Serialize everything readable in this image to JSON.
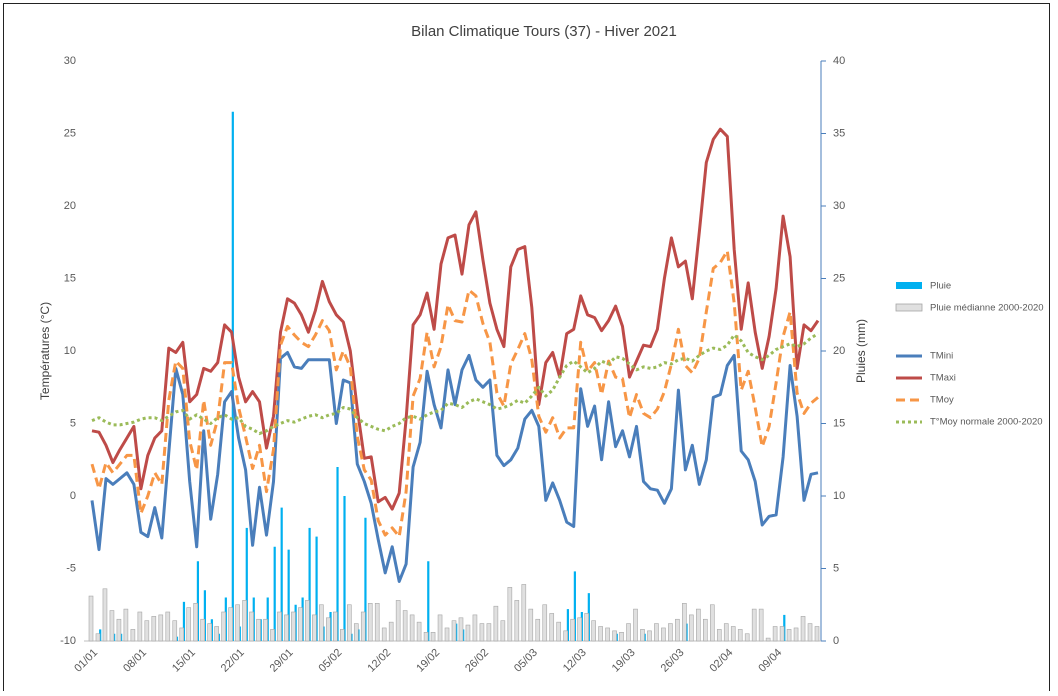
{
  "chart_data": {
    "type": "combo",
    "title": "Bilan Climatique Tours (37) - Hiver 2021",
    "y_label": "Températures (°C)",
    "y2_label": "Pluies (mm)",
    "legend": "right",
    "ylim": [
      -10,
      30
    ],
    "yticks": [
      -10,
      -5,
      0,
      5,
      10,
      15,
      20,
      25,
      30
    ],
    "y2lim": [
      0,
      40
    ],
    "y2ticks": [
      0,
      5,
      10,
      15,
      20,
      25,
      30,
      35,
      40
    ],
    "categories": [
      "01/01",
      null,
      null,
      null,
      null,
      null,
      null,
      "08/01",
      null,
      null,
      null,
      null,
      null,
      null,
      "15/01",
      null,
      null,
      null,
      null,
      null,
      null,
      "22/01",
      null,
      null,
      null,
      null,
      null,
      null,
      "29/01",
      null,
      null,
      null,
      null,
      null,
      null,
      "05/02",
      null,
      null,
      null,
      null,
      null,
      null,
      "12/02",
      null,
      null,
      null,
      null,
      null,
      null,
      "19/02",
      null,
      null,
      null,
      null,
      null,
      null,
      "26/02",
      null,
      null,
      null,
      null,
      null,
      null,
      "05/03",
      null,
      null,
      null,
      null,
      null,
      null,
      "12/03",
      null,
      null,
      null,
      null,
      null,
      null,
      "19/03",
      null,
      null,
      null,
      null,
      null,
      null,
      "26/03",
      null,
      null,
      null,
      null,
      null,
      null,
      "02/04",
      null,
      null,
      null,
      null,
      null,
      null,
      "09/04",
      null,
      null,
      null,
      null,
      null,
      null
    ],
    "series": [
      {
        "name": "Pluie",
        "kind": "bar",
        "axis": "y2",
        "color": "#00b0f0",
        "values": [
          0,
          0.8,
          0,
          0.5,
          0.5,
          0,
          0,
          0,
          0,
          0,
          0,
          0,
          0.3,
          2.7,
          0,
          5.5,
          3.5,
          1.5,
          0.5,
          3,
          36.5,
          1,
          7.8,
          3,
          1.5,
          3,
          6.5,
          9.2,
          6.3,
          2.5,
          3,
          7.8,
          7.2,
          1,
          2,
          12,
          10,
          0.5,
          0.8,
          8.5,
          0,
          0,
          0,
          0,
          0,
          0,
          0,
          0,
          5.5,
          0,
          0,
          0,
          1.2,
          0.8,
          0,
          0,
          0,
          0,
          0,
          0,
          0,
          0,
          0,
          0,
          0,
          0,
          0,
          0,
          2.2,
          4.8,
          2,
          3.3,
          0,
          0,
          0,
          0.5,
          0,
          0,
          0,
          0.5,
          0,
          0,
          0,
          0,
          0,
          1.2,
          0,
          0,
          0,
          0,
          0,
          0,
          0,
          0,
          0,
          0,
          0,
          0,
          0,
          1.8,
          0,
          0,
          0,
          0,
          0
        ]
      },
      {
        "name": "Pluie médianne 2000-2020",
        "kind": "bar",
        "axis": "y2",
        "color": "#e0e0e0",
        "values": [
          3.1,
          0.5,
          3.6,
          2.1,
          1.5,
          2.2,
          0.8,
          2.0,
          1.4,
          1.7,
          1.8,
          2.0,
          1.4,
          0.9,
          2.3,
          2.6,
          1.5,
          1.2,
          1.0,
          2.0,
          2.3,
          2.5,
          2.8,
          2.0,
          1.5,
          1.5,
          0.8,
          2.0,
          1.8,
          2.0,
          2.3,
          2.8,
          1.8,
          2.5,
          1.6,
          2.0,
          0.8,
          2.5,
          1.2,
          2.0,
          2.6,
          2.6,
          0.9,
          1.3,
          2.8,
          2.1,
          1.8,
          1.3,
          0.6,
          0.6,
          1.8,
          0.9,
          1.4,
          1.6,
          1.1,
          1.8,
          1.2,
          1.2,
          2.4,
          1.4,
          3.7,
          2.8,
          3.9,
          2.2,
          1.5,
          2.5,
          1.9,
          1.3,
          0.7,
          1.5,
          1.6,
          1.9,
          1.4,
          1.0,
          0.9,
          0.7,
          0.6,
          1.2,
          2.2,
          0.8,
          0.7,
          1.2,
          0.9,
          1.2,
          1.5,
          2.6,
          1.8,
          2.2,
          1.5,
          2.5,
          0.8,
          1.2,
          1.0,
          0.8,
          0.5,
          2.2,
          2.2,
          0.2,
          1.0,
          1.0,
          0.8,
          0.9,
          1.7,
          1.2,
          1.0
        ]
      },
      {
        "name": "TMini",
        "kind": "line",
        "dash": "solid",
        "color": "#4a7ebb",
        "values": [
          -0.3,
          -3.7,
          1.2,
          0.8,
          1.2,
          1.6,
          0.8,
          -2.5,
          -2.8,
          -0.8,
          -2.9,
          3,
          8.8,
          7,
          1,
          -3.5,
          4.5,
          -1.6,
          1.5,
          6.5,
          7.2,
          4,
          1.8,
          -3.4,
          0.6,
          -2.7,
          1,
          9.5,
          9.9,
          8.9,
          8.8,
          9.4,
          9.4,
          9.4,
          9.4,
          5,
          8,
          7.8,
          2.2,
          1,
          -0.5,
          -3,
          -5.3,
          -3.5,
          -5.9,
          -4.7,
          2,
          3.7,
          8.6,
          6.3,
          4.7,
          8.7,
          6.3,
          8.7,
          9.7,
          8,
          7.5,
          8,
          2.8,
          2.1,
          2.5,
          3.3,
          5.3,
          5.9,
          4.8,
          -0.3,
          0.9,
          -0.3,
          -1.8,
          -2.1,
          7.4,
          4.8,
          6.2,
          2.5,
          6.5,
          3.4,
          4.5,
          2.7,
          4.8,
          1,
          0.5,
          0.4,
          -0.5,
          0.5,
          7.3,
          1.8,
          3.5,
          0.8,
          2.5,
          6.8,
          7,
          9,
          9.7,
          3.1,
          2.5,
          1,
          -2,
          -1.4,
          -1.3,
          2.7,
          9,
          5.5,
          -0.3,
          1.5,
          1.6
        ]
      },
      {
        "name": "TMaxi",
        "kind": "line",
        "dash": "solid",
        "color": "#be4b48",
        "values": [
          4.5,
          4.4,
          3.5,
          2.3,
          3.2,
          4,
          4.8,
          0.5,
          2.8,
          4,
          4.5,
          10.2,
          9.9,
          10.6,
          6.5,
          7,
          8.8,
          8.6,
          9.2,
          11.8,
          11.3,
          8.2,
          6.5,
          7.2,
          6.5,
          3.3,
          5.5,
          11.3,
          13.6,
          13.3,
          12.5,
          11.3,
          12.8,
          14.8,
          13.4,
          12.5,
          12,
          10,
          6,
          2.6,
          2.7,
          -0.4,
          -0.1,
          -0.9,
          0.2,
          5.3,
          11.8,
          12.5,
          14,
          11.5,
          16,
          17.8,
          18,
          15.3,
          18.7,
          19.6,
          16.3,
          13.3,
          11.5,
          10.3,
          15.8,
          17,
          17.2,
          13,
          6.3,
          9.2,
          9.9,
          8.2,
          11.2,
          11.5,
          13.8,
          12.5,
          12.3,
          11.4,
          12.1,
          13.1,
          11.7,
          8.2,
          9.3,
          10.4,
          10.3,
          11.5,
          15,
          17.8,
          15.8,
          16.2,
          13.6,
          18.2,
          23,
          24.6,
          25.3,
          24.8,
          17,
          11.5,
          14.7,
          11.3,
          8.8,
          11,
          14.3,
          19.3,
          16.5,
          8.8,
          11.8,
          11.4,
          12.1
        ]
      },
      {
        "name": "TMoy",
        "kind": "line",
        "dash": "dash",
        "color": "#f79646",
        "values": [
          2.2,
          0.5,
          2.3,
          1.6,
          2.2,
          2.8,
          2.8,
          -1.2,
          0,
          1.6,
          0.8,
          6.6,
          9.3,
          8.8,
          3.8,
          1.8,
          6.6,
          3.5,
          5.3,
          9.2,
          9.2,
          6.1,
          4.1,
          1.9,
          3.5,
          0.3,
          3.2,
          10.4,
          11.7,
          11.1,
          10.6,
          10.3,
          11.1,
          12.1,
          11.4,
          8.7,
          10,
          8.9,
          4.1,
          1.8,
          1.1,
          -1.7,
          -2.7,
          -2.2,
          -2.8,
          0.3,
          6.9,
          8.1,
          11.3,
          8.9,
          10.3,
          13.2,
          12.1,
          12,
          14.2,
          13.8,
          11.9,
          10.6,
          7.1,
          6.2,
          9.1,
          10.1,
          11.2,
          9.4,
          5.5,
          4.4,
          5.4,
          4,
          4.7,
          4.7,
          10.6,
          8.6,
          9.2,
          7,
          9.3,
          8.2,
          8.1,
          5.4,
          7,
          5.7,
          5.4,
          6,
          7.2,
          9.1,
          11.5,
          9,
          8.5,
          9.5,
          12.7,
          15.7,
          16.1,
          16.9,
          13.3,
          7.3,
          8.6,
          6.1,
          3.4,
          4.8,
          7.8,
          11,
          12.7,
          7.1,
          5.7,
          6.4,
          6.8
        ]
      },
      {
        "name": "T°Moy normale 2000-2020",
        "kind": "line",
        "dash": "dot",
        "color": "#9bbb59",
        "values": [
          5.2,
          5.4,
          5.1,
          4.9,
          4.9,
          5.0,
          5.1,
          5.3,
          5.4,
          5.4,
          5.2,
          5.5,
          5.8,
          5.9,
          5.3,
          5.6,
          5.3,
          5.0,
          5.4,
          5.6,
          5.3,
          5.4,
          4.8,
          4.6,
          4.3,
          4.5,
          4.8,
          5.0,
          5.2,
          5.1,
          5.3,
          5.5,
          5.6,
          5.4,
          5.6,
          5.7,
          6.1,
          6.0,
          5.4,
          5.0,
          4.8,
          4.6,
          4.5,
          4.8,
          5.0,
          5.4,
          5.5,
          5.3,
          5.6,
          5.8,
          5.9,
          6.4,
          6.3,
          6.1,
          6.5,
          6.7,
          6.5,
          6.3,
          6.0,
          6.1,
          6.3,
          6.6,
          6.4,
          6.9,
          7.5,
          6.9,
          7.3,
          8.2,
          9.0,
          9.3,
          8.9,
          8.5,
          8.8,
          9.3,
          9.1,
          9.6,
          9.5,
          9.1,
          8.7,
          8.9,
          8.8,
          8.9,
          9.2,
          9.1,
          9.4,
          9.5,
          9.3,
          9.7,
          10.0,
          10.2,
          10.1,
          10.4,
          11.1,
          10.7,
          9.9,
          9.6,
          9.4,
          9.7,
          10.1,
          10.3,
          10.5,
          10.3,
          10.5,
          10.9,
          11.2
        ]
      }
    ]
  }
}
